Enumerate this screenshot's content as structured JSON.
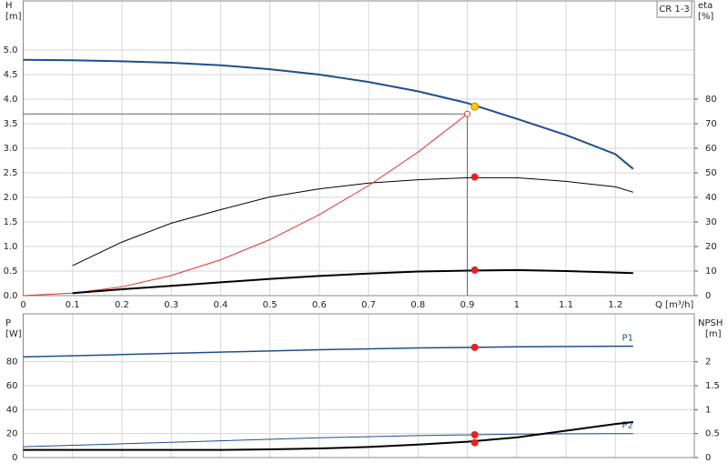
{
  "chart_data": [
    {
      "type": "line",
      "badge": "CR 1-3",
      "y_label": "H",
      "y_unit": "[m]",
      "y2_label": "eta",
      "y2_unit": "[%]",
      "x_label": "Q [m³/h]",
      "xlim": [
        0,
        1.36
      ],
      "xticks": [
        0,
        0.1,
        0.2,
        0.3,
        0.4,
        0.5,
        0.6,
        0.7,
        0.8,
        0.9,
        1.0,
        1.1,
        1.2
      ],
      "ylim": [
        0,
        6
      ],
      "yticks": [
        {
          "value": 0,
          "label": "0.0"
        },
        0.5,
        {
          "value": 1,
          "label": "1.0"
        },
        1.5,
        {
          "value": 2,
          "label": "2.0"
        },
        2.5,
        {
          "value": 3,
          "label": "3.0"
        },
        3.5,
        {
          "value": 4,
          "label": "4.0"
        },
        4.5,
        {
          "value": 5,
          "label": "5.0"
        }
      ],
      "y2lim": [
        0,
        120
      ],
      "y2ticks": [
        0,
        10,
        20,
        30,
        40,
        50,
        60,
        70,
        80
      ],
      "grid": true,
      "series": [
        {
          "color": "#1f4e8c",
          "width": 2,
          "x": [
            0,
            0.1,
            0.2,
            0.3,
            0.4,
            0.5,
            0.6,
            0.7,
            0.8,
            0.9,
            1.0,
            1.1,
            1.2,
            1.236
          ],
          "values": [
            4.8,
            4.79,
            4.77,
            4.74,
            4.69,
            4.61,
            4.5,
            4.35,
            4.16,
            3.92,
            3.6,
            3.27,
            2.88,
            2.58
          ]
        },
        {
          "color": "#000000",
          "width": 1,
          "axis": "y2",
          "x": [
            0.1,
            0.2,
            0.3,
            0.4,
            0.5,
            0.6,
            0.7,
            0.8,
            0.9,
            1.0,
            1.1,
            1.2,
            1.236
          ],
          "values": [
            12.2,
            21.8,
            29.5,
            35,
            40.2,
            43.5,
            45.8,
            47.2,
            48,
            48,
            46.5,
            44.3,
            42.1
          ]
        },
        {
          "color": "#e53030",
          "width": 1,
          "x": [
            0,
            0.1,
            0.2,
            0.3,
            0.4,
            0.5,
            0.6,
            0.7,
            0.8,
            0.9
          ],
          "values": [
            0,
            0.05,
            0.18,
            0.41,
            0.73,
            1.14,
            1.65,
            2.24,
            2.92,
            3.7
          ]
        },
        {
          "color": "#000000",
          "width": 2,
          "x": [
            0.1,
            0.2,
            0.3,
            0.4,
            0.5,
            0.6,
            0.7,
            0.8,
            0.9,
            1.0,
            1.1,
            1.2,
            1.236
          ],
          "values": [
            0.05,
            0.13,
            0.2,
            0.27,
            0.34,
            0.4,
            0.45,
            0.49,
            0.51,
            0.52,
            0.5,
            0.47,
            0.46
          ]
        }
      ],
      "reference": {
        "x": 0.9,
        "y": 3.7
      },
      "markers": [
        {
          "x": 0.9,
          "y": 3.7,
          "color": "#e53030",
          "open": true
        },
        {
          "x": 0.915,
          "y": 3.85,
          "color": "#ffcc00"
        },
        {
          "x": 0.915,
          "y": 48.3,
          "axis": "y2",
          "color": "#e52020"
        },
        {
          "x": 0.915,
          "y": 0.52,
          "color": "#e52020"
        }
      ]
    },
    {
      "type": "line",
      "y_label": "P",
      "y_unit": "[W]",
      "y2_label": "NPSH",
      "y2_unit": "[m]",
      "xlim": [
        0,
        1.36
      ],
      "xticks": [
        0,
        0.1,
        0.2,
        0.3,
        0.4,
        0.5,
        0.6,
        0.7,
        0.8,
        0.9,
        1.0,
        1.1,
        1.2
      ],
      "ylim": [
        0,
        120
      ],
      "yticks": [
        0,
        20,
        40,
        60,
        80
      ],
      "y2lim": [
        0,
        3
      ],
      "y2ticks": [
        0,
        0.5,
        1,
        1.5,
        2
      ],
      "grid": true,
      "series": [
        {
          "name": "P1",
          "color": "#1f4e8c",
          "width": 1.5,
          "x": [
            0,
            0.2,
            0.4,
            0.6,
            0.8,
            0.915,
            1.0,
            1.2,
            1.236
          ],
          "values": [
            84,
            86,
            88,
            90,
            91.5,
            92,
            92.5,
            93,
            93
          ]
        },
        {
          "name": "P2",
          "color": "#1f4e8c",
          "width": 1,
          "x": [
            0,
            0.2,
            0.4,
            0.6,
            0.8,
            0.915,
            1.0,
            1.2,
            1.236
          ],
          "values": [
            9,
            11.5,
            14,
            16.5,
            18.3,
            19,
            19.5,
            20,
            20
          ]
        },
        {
          "color": "#000000",
          "width": 2,
          "axis": "y2",
          "x": [
            0,
            0.2,
            0.4,
            0.5,
            0.6,
            0.7,
            0.8,
            0.9,
            1.0,
            1.1,
            1.2,
            1.236
          ],
          "values": [
            0.16,
            0.16,
            0.16,
            0.17,
            0.19,
            0.22,
            0.27,
            0.33,
            0.42,
            0.56,
            0.7,
            0.74
          ]
        }
      ],
      "markers": [
        {
          "x": 0.915,
          "y": 92,
          "color": "#e52020"
        },
        {
          "x": 0.915,
          "y": 19,
          "color": "#e52020"
        },
        {
          "x": 0.915,
          "y": 0.31,
          "axis": "y2",
          "color": "#e52020"
        }
      ]
    }
  ]
}
